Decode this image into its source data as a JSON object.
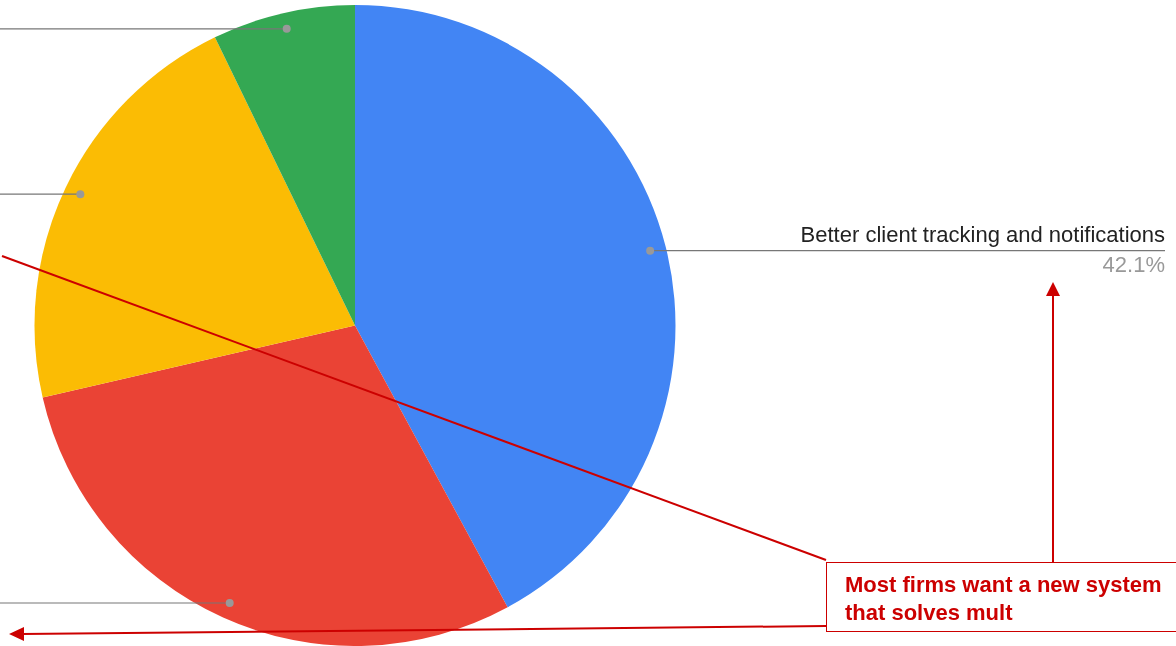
{
  "chart_data": {
    "type": "pie",
    "categories": [
      "Better client tracking and notifications",
      null,
      null,
      null
    ],
    "values": [
      42.1,
      29.3,
      21.4,
      7.2
    ],
    "colors": [
      "#4285f4",
      "#ea4335",
      "#fbbc04",
      "#34a853"
    ],
    "value_labels": [
      "42.1%",
      null,
      null,
      null
    ],
    "legend": false,
    "annotations": [
      "Most firms want a new system that solves mult"
    ]
  }
}
